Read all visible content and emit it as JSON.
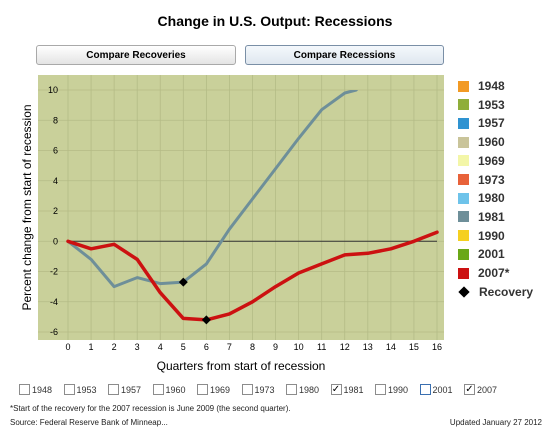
{
  "header": {
    "title": "Change in U.S. Output: Recessions"
  },
  "buttons": {
    "recoveries": "Compare Recoveries",
    "recessions": "Compare Recessions"
  },
  "legend": [
    {
      "label": "1948",
      "color": "#f29a24"
    },
    {
      "label": "1953",
      "color": "#8fae3a"
    },
    {
      "label": "1957",
      "color": "#2f93d1"
    },
    {
      "label": "1960",
      "color": "#c9c49a"
    },
    {
      "label": "1969",
      "color": "#f3f6a8"
    },
    {
      "label": "1973",
      "color": "#e8623a"
    },
    {
      "label": "1980",
      "color": "#6ec3ea"
    },
    {
      "label": "1981",
      "color": "#6e8f99"
    },
    {
      "label": "1990",
      "color": "#f5d020"
    },
    {
      "label": "2001",
      "color": "#6aa817"
    },
    {
      "label": "2007*",
      "color": "#cc1111"
    },
    {
      "label": "Recovery",
      "icon": "diamond-icon"
    }
  ],
  "checkboxes": [
    {
      "label": "1948",
      "checked": false
    },
    {
      "label": "1953",
      "checked": false
    },
    {
      "label": "1957",
      "checked": false
    },
    {
      "label": "1960",
      "checked": false
    },
    {
      "label": "1969",
      "checked": false
    },
    {
      "label": "1973",
      "checked": false
    },
    {
      "label": "1980",
      "checked": false
    },
    {
      "label": "1981",
      "checked": true
    },
    {
      "label": "1990",
      "checked": false
    },
    {
      "label": "2001",
      "checked": false
    },
    {
      "label": "2007",
      "checked": true
    }
  ],
  "footer": {
    "note": "*Start of the recovery for the 2007 recession is June 2009 (the second quarter).",
    "source": "Source: Federal Reserve Bank of Minneap...",
    "updated": "Updated January 27 2012"
  },
  "chart_data": {
    "type": "line",
    "xlabel": "Quarters from start of recession",
    "ylabel": "Percent change from start of recession",
    "x": [
      0,
      1,
      2,
      3,
      4,
      5,
      6,
      7,
      8,
      9,
      10,
      11,
      12,
      13,
      14,
      15,
      16
    ],
    "xlim": [
      0,
      16
    ],
    "ylim": [
      -6,
      10
    ],
    "yticks": [
      10,
      8,
      6,
      4,
      2,
      0,
      -2,
      -4,
      -6
    ],
    "plot_background": "#c9d09a",
    "grid": true,
    "series": [
      {
        "name": "1981",
        "color": "#6e8f99",
        "x": [
          0,
          1,
          2,
          3,
          4,
          5,
          6,
          7,
          8,
          9,
          10,
          11,
          12,
          12.5
        ],
        "y": [
          0,
          -1.2,
          -3.0,
          -2.4,
          -2.8,
          -2.7,
          -1.5,
          0.8,
          2.8,
          4.8,
          6.8,
          8.7,
          9.8,
          10.0
        ],
        "recovery": {
          "x": 5,
          "y": -2.7
        }
      },
      {
        "name": "2007*",
        "color": "#cc1111",
        "x": [
          0,
          1,
          2,
          3,
          4,
          5,
          6,
          7,
          8,
          9,
          10,
          11,
          12,
          13,
          14,
          15,
          16
        ],
        "y": [
          0,
          -0.5,
          -0.2,
          -1.2,
          -3.4,
          -5.1,
          -5.2,
          -4.8,
          -4.0,
          -3.0,
          -2.1,
          -1.5,
          -0.9,
          -0.8,
          -0.5,
          0.0,
          0.6
        ],
        "recovery": {
          "x": 6,
          "y": -5.2
        }
      }
    ]
  }
}
